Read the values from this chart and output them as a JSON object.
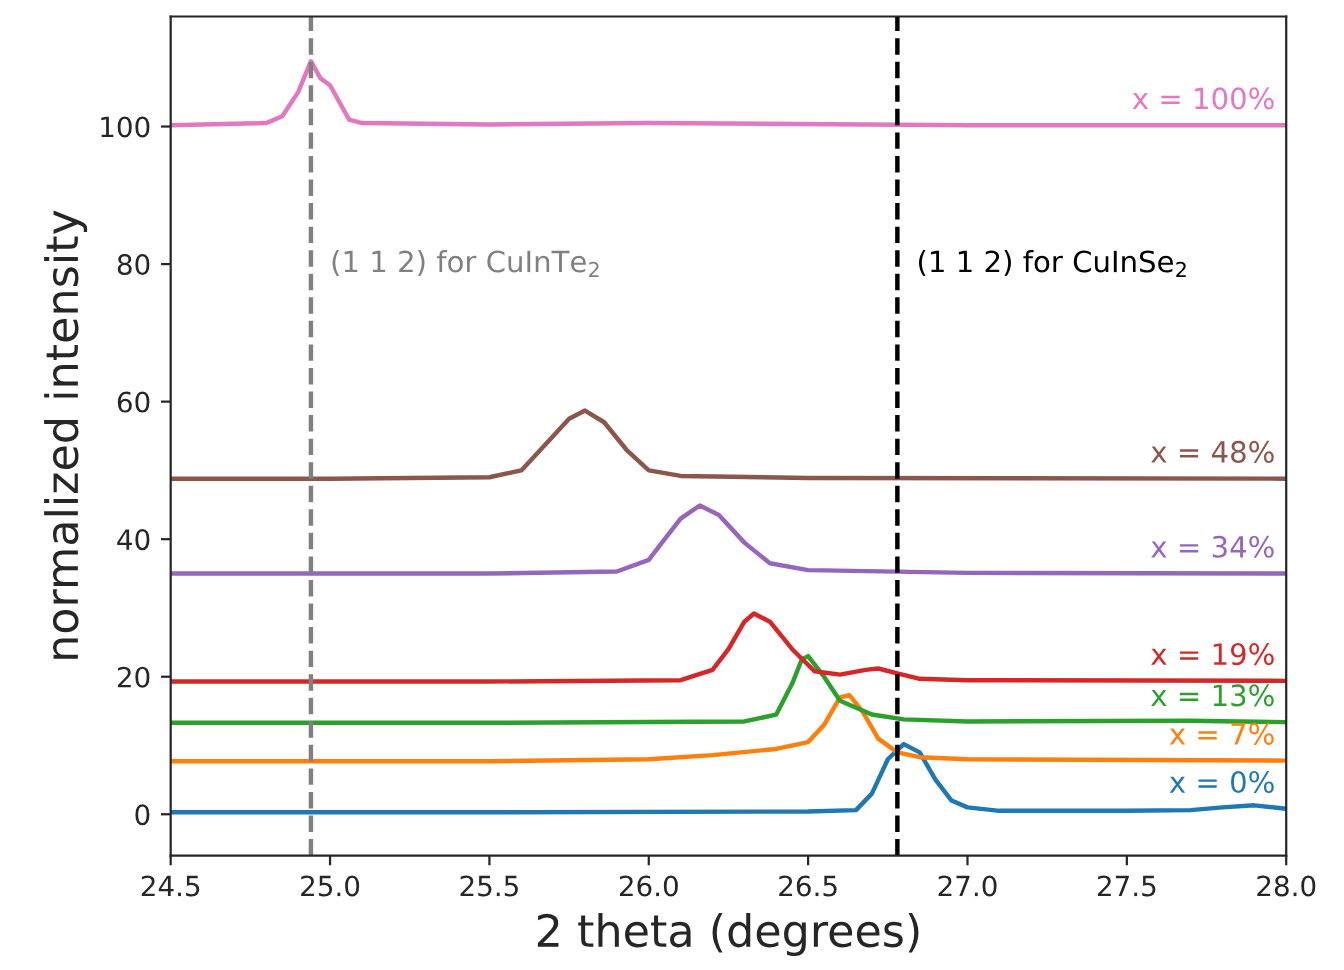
{
  "chart_data": {
    "type": "line",
    "xlabel": "2 theta (degrees)",
    "ylabel": "normalized intensity",
    "xlim": [
      24.5,
      28.0
    ],
    "ylim": [
      -6,
      116
    ],
    "xticks": [
      {
        "value": 24.5,
        "label": "24.5"
      },
      {
        "value": 25.0,
        "label": "25.0"
      },
      {
        "value": 25.5,
        "label": "25.5"
      },
      {
        "value": 26.0,
        "label": "26.0"
      },
      {
        "value": 26.5,
        "label": "26.5"
      },
      {
        "value": 27.0,
        "label": "27.0"
      },
      {
        "value": 27.5,
        "label": "27.5"
      },
      {
        "value": 28.0,
        "label": "28.0"
      }
    ],
    "yticks": [
      0,
      20,
      40,
      60,
      80,
      100
    ],
    "grid": false,
    "legend": false,
    "marker": "none",
    "line_style": "solid",
    "ref_lines": [
      {
        "axis": "x",
        "value": 24.94,
        "label": "(1 1 2) for CuInTe$_{2}$",
        "color": "#808080",
        "line_style": "dashed"
      },
      {
        "axis": "x",
        "value": 26.78,
        "label": "(1 1 2) for CuInSe$_{2}$",
        "color": "#000000",
        "line_style": "dashed"
      }
    ],
    "series": [
      {
        "name": "x = 0%",
        "color": "#1f77b4",
        "x": [
          24.5,
          25.5,
          26.5,
          26.65,
          26.7,
          26.75,
          26.8,
          26.85,
          26.9,
          26.95,
          27.0,
          27.1,
          27.5,
          27.7,
          27.8,
          27.9,
          28.0
        ],
        "values": [
          0.3,
          0.3,
          0.4,
          0.6,
          3,
          8,
          10.2,
          9,
          5,
          2,
          1,
          0.5,
          0.5,
          0.6,
          1.0,
          1.3,
          0.8
        ]
      },
      {
        "name": "x = 7%",
        "color": "#ff7f0e",
        "x": [
          24.5,
          25.5,
          26.0,
          26.2,
          26.4,
          26.5,
          26.55,
          26.6,
          26.63,
          26.67,
          26.72,
          26.78,
          26.85,
          27.0,
          28.0
        ],
        "values": [
          7.7,
          7.7,
          8.0,
          8.6,
          9.5,
          10.5,
          13,
          17,
          17.3,
          15,
          11,
          9,
          8.3,
          8.0,
          7.8
        ]
      },
      {
        "name": "x = 13%",
        "color": "#2ca02c",
        "x": [
          24.5,
          25.5,
          26.3,
          26.4,
          26.45,
          26.48,
          26.5,
          26.55,
          26.6,
          26.7,
          26.8,
          27.0,
          27.7,
          28.0
        ],
        "values": [
          13.3,
          13.3,
          13.5,
          14.5,
          19,
          22.5,
          23,
          20,
          16.5,
          14.5,
          13.8,
          13.5,
          13.6,
          13.4
        ]
      },
      {
        "name": "x = 19%",
        "color": "#d62728",
        "x": [
          24.5,
          25.5,
          26.1,
          26.2,
          26.25,
          26.3,
          26.33,
          26.38,
          26.45,
          26.52,
          26.6,
          26.68,
          26.72,
          26.78,
          26.85,
          27.0,
          28.0
        ],
        "values": [
          19.3,
          19.3,
          19.5,
          21,
          24,
          28,
          29.2,
          28,
          24,
          20.8,
          20.3,
          21,
          21.2,
          20.5,
          19.7,
          19.5,
          19.4
        ]
      },
      {
        "name": "x = 34%",
        "color": "#9467bd",
        "x": [
          24.5,
          25.5,
          25.9,
          26.0,
          26.05,
          26.1,
          26.16,
          26.22,
          26.3,
          26.38,
          26.5,
          27.0,
          28.0
        ],
        "values": [
          35,
          35,
          35.3,
          37,
          40,
          43,
          44.9,
          43.5,
          39.5,
          36.5,
          35.5,
          35.1,
          35
        ]
      },
      {
        "name": "x = 48%",
        "color": "#8c564b",
        "x": [
          24.5,
          25.0,
          25.5,
          25.6,
          25.68,
          25.75,
          25.8,
          25.86,
          25.93,
          26.0,
          26.1,
          26.5,
          28.0
        ],
        "values": [
          48.8,
          48.8,
          49,
          50,
          54,
          57.5,
          58.7,
          57,
          53,
          50,
          49.2,
          48.9,
          48.8
        ]
      },
      {
        "name": "x = 100%",
        "color": "#e377c2",
        "x": [
          24.5,
          24.8,
          24.85,
          24.9,
          24.94,
          24.97,
          25.0,
          25.03,
          25.06,
          25.1,
          25.5,
          26.0,
          27.0,
          28.0
        ],
        "values": [
          100.2,
          100.5,
          101.5,
          105,
          109.5,
          107,
          106,
          103.5,
          101,
          100.5,
          100.3,
          100.5,
          100.2,
          100.2
        ]
      }
    ]
  }
}
